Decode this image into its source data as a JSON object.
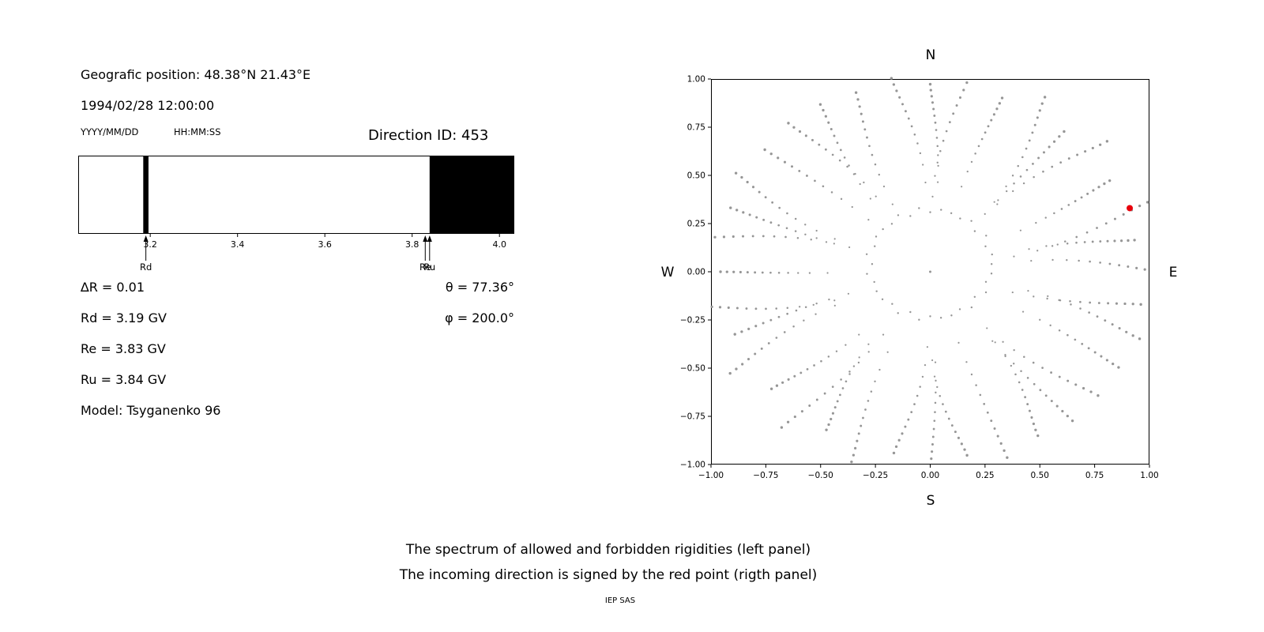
{
  "figure": {
    "bg": "#ffffff"
  },
  "left_panel": {
    "geo_position": "Geografic position: 48.38°N 21.43°E",
    "datetime": "1994/02/28 12:00:00",
    "date_format_hint": "YYYY/MM/DD",
    "time_format_hint": "HH:MM:SS",
    "direction_id": "Direction ID: 453",
    "delta_r": "∆R = 0.01",
    "rd": "Rd = 3.19 GV",
    "re": "Re = 3.83 GV",
    "ru": "Ru = 3.84 GV",
    "model": "Model: Tsyganenko 96",
    "theta": "θ = 77.36°",
    "phi": "φ = 200.0°"
  },
  "captions": {
    "line1": "The spectrum of allowed and forbidden rigidities (left panel)",
    "line2": "The incoming direction is signed by the red point (rigth panel)",
    "credit": "IEP SAS"
  },
  "chart_data": [
    {
      "type": "bar",
      "name": "rigidity-spectrum",
      "x_range": [
        3.035,
        4.034
      ],
      "tick_values": [
        3.2,
        3.4,
        3.6,
        3.8,
        4.0
      ],
      "tick_labels": [
        "3.2",
        "3.4",
        "3.6",
        "3.8",
        "4.0"
      ],
      "forbidden_line": {
        "x": 3.19,
        "half_width": 0.006
      },
      "forbidden_band": {
        "from": 3.84,
        "to": 4.034
      },
      "allowed_color": "#ffffff",
      "forbidden_color": "#000000",
      "markers": [
        {
          "label": "Rd",
          "x": 3.19
        },
        {
          "label": "Re",
          "x": 3.83
        },
        {
          "label": "Ru",
          "x": 3.84
        }
      ]
    },
    {
      "type": "scatter",
      "name": "incoming-direction-map",
      "xlim": [
        -1,
        1
      ],
      "ylim": [
        -1,
        1
      ],
      "tick_values": [
        -1,
        -0.75,
        -0.5,
        -0.25,
        0,
        0.25,
        0.5,
        0.75,
        1
      ],
      "x_tick_labels": [
        "−1.00",
        "−0.75",
        "−0.50",
        "−0.25",
        "0.00",
        "0.25",
        "0.50",
        "0.75",
        "1.00"
      ],
      "y_tick_labels": [
        "−1.00",
        "−0.75",
        "−0.50",
        "−0.25",
        "0.00",
        "0.25",
        "0.50",
        "0.75",
        "1.00"
      ],
      "compass": {
        "top": "N",
        "bottom": "S",
        "left": "W",
        "right": "E"
      },
      "dot_color": "#969696",
      "red_color": "#e8000b",
      "red_point": {
        "x": 0.91,
        "y": 0.33
      },
      "pattern": {
        "spokes": 36,
        "dots_per_spoke": 13,
        "r_start": 0.44,
        "r_end": 1.0,
        "radial_exponent": 0.72,
        "curvature_deg": 9,
        "inner_ring": {
          "radius": 0.28,
          "center_y": 0.04,
          "dots": 36
        },
        "center_dot": true
      }
    }
  ]
}
